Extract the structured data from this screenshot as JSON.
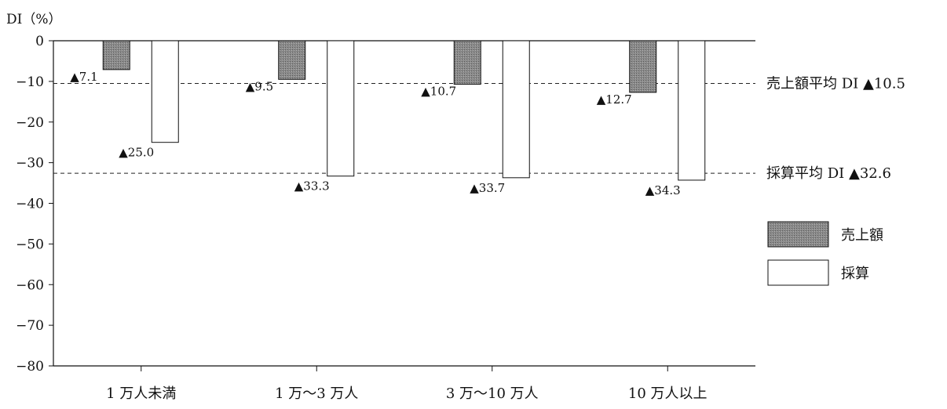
{
  "chart_data": {
    "type": "bar",
    "ylabel": "DI（%）",
    "ylim": [
      -80,
      0
    ],
    "yticks": [
      0,
      -10,
      -20,
      -30,
      -40,
      -50,
      -60,
      -70,
      -80
    ],
    "ytick_labels": [
      "0",
      "−10",
      "−20",
      "−30",
      "−40",
      "−50",
      "−60",
      "−70",
      "−80"
    ],
    "categories": [
      "1 万人未満",
      "1 万～3 万人",
      "3 万～10 万人",
      "10 万人以上"
    ],
    "series": [
      {
        "name": "売上額",
        "values": [
          -7.1,
          -9.5,
          -10.7,
          -12.7
        ],
        "labels": [
          "▲7.1",
          "▲9.5",
          "▲10.7",
          "▲12.7"
        ],
        "fill": "#8a8a8a"
      },
      {
        "name": "採算",
        "values": [
          -25.0,
          -33.3,
          -33.7,
          -34.3
        ],
        "labels": [
          "▲25.0",
          "▲33.3",
          "▲33.7",
          "▲34.3"
        ],
        "fill": "#ffffff"
      }
    ],
    "reference_lines": [
      {
        "value": -10.5,
        "label": "売上額平均 DI ▲10.5"
      },
      {
        "value": -32.6,
        "label": "採算平均 DI ▲32.6"
      }
    ],
    "legend_position": "right",
    "grid": false
  }
}
